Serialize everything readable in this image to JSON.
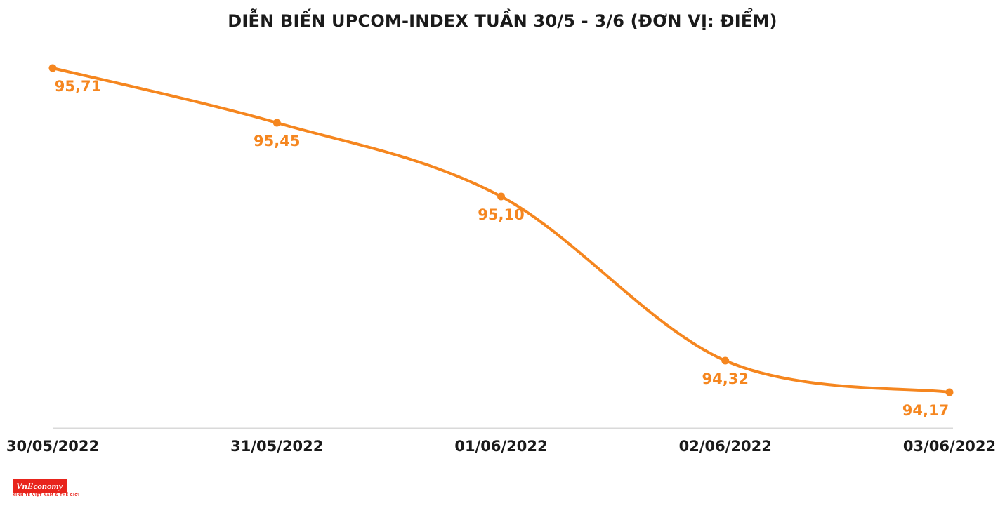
{
  "chart_data": {
    "type": "line",
    "title": "DIỄN BIẾN UPCOM-INDEX TUẦN 30/5 - 3/6 (ĐƠN VỊ: ĐIỂM)",
    "categories": [
      "30/05/2022",
      "31/05/2022",
      "01/06/2022",
      "02/06/2022",
      "03/06/2022"
    ],
    "series": [
      {
        "name": "UPCOM-INDEX",
        "values": [
          95.71,
          95.45,
          95.1,
          94.32,
          94.17
        ],
        "value_labels": [
          "95,71",
          "95,45",
          "95,10",
          "94,32",
          "94,17"
        ]
      }
    ],
    "ylim": [
      94.0,
      96.03
    ],
    "xlabel": "",
    "ylabel": "",
    "grid": false,
    "legend": "none",
    "colors": {
      "line": "#F5861F",
      "point": "#F5861F",
      "value_label": "#F5861F",
      "axis_line": "#D9D9D9",
      "axis_label": "#1A1A1A",
      "title": "#1A1A1A",
      "background": "#FFFFFF"
    }
  },
  "branding": {
    "logo_text": "VnEconomy",
    "logo_tagline": "KINH TẾ VIỆT NAM & THẾ GIỚI"
  }
}
